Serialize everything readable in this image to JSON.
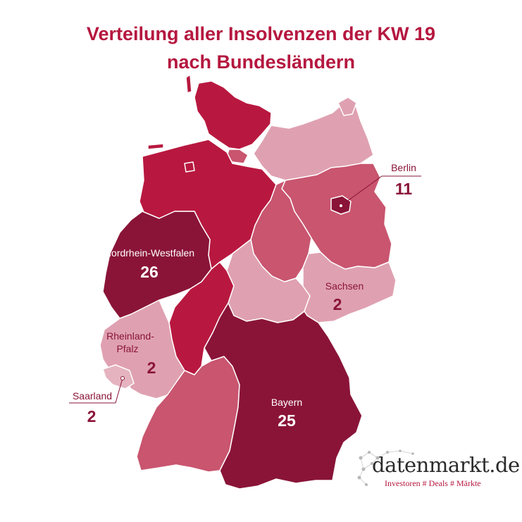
{
  "title": {
    "line1": "Verteilung aller Insolvenzen der KW 19",
    "line2": "nach Bundesländern"
  },
  "colors": {
    "title": "#b5173f",
    "darkest": "#8a1438",
    "dark": "#b8183f",
    "medium": "#c9556f",
    "light": "#dfa1b1",
    "outline": "#ffffff"
  },
  "labels": {
    "nrw": {
      "name": "Nordrhein-Westfalen",
      "value": "26"
    },
    "bayern": {
      "name": "Bayern",
      "value": "25"
    },
    "berlin": {
      "name": "Berlin",
      "value": "11"
    },
    "sachsen": {
      "name": "Sachsen",
      "value": "2"
    },
    "rlp": {
      "name_line1": "Rheinland-",
      "name_line2": "Pfalz",
      "value": "2"
    },
    "saarland": {
      "name": "Saarland",
      "value": "2"
    }
  },
  "logo": {
    "name": "datenmarkt.de",
    "tagline": "Investoren # Deals # Märkte"
  }
}
